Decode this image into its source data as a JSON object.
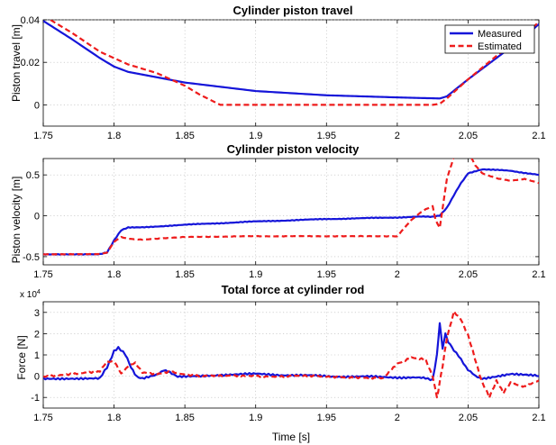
{
  "colors": {
    "measured": "#1515d9",
    "estimated": "#ee1c1c"
  },
  "chart_data": [
    {
      "type": "line",
      "title": "Cylinder piston travel",
      "xlabel": "",
      "ylabel": "Piston travel [m]",
      "xlim": [
        1.75,
        2.1
      ],
      "ylim": [
        -0.01,
        0.04
      ],
      "xticks": [
        1.75,
        1.8,
        1.85,
        1.9,
        1.95,
        2,
        2.05,
        2.1
      ],
      "xtick_labels": [
        "1.75",
        "1.8",
        "1.85",
        "1.9",
        "1.95",
        "2",
        "2.05",
        "2.1"
      ],
      "yticks": [
        0,
        0.02,
        0.04
      ],
      "ytick_labels": [
        "0",
        "0.02",
        "0.04"
      ],
      "y_multiplier": "",
      "grid": true,
      "legend": {
        "position": "top-right",
        "entries": [
          "Measured",
          "Estimated"
        ]
      },
      "series": [
        {
          "name": "Measured",
          "style": "solid",
          "x": [
            1.75,
            1.77,
            1.79,
            1.8,
            1.81,
            1.85,
            1.9,
            1.95,
            2.0,
            2.03,
            2.035,
            2.05,
            2.07,
            2.09,
            2.1
          ],
          "y": [
            0.0395,
            0.031,
            0.022,
            0.018,
            0.0155,
            0.0105,
            0.0065,
            0.0045,
            0.0035,
            0.003,
            0.004,
            0.012,
            0.022,
            0.032,
            0.038
          ]
        },
        {
          "name": "Estimated",
          "style": "dashed",
          "x": [
            1.75,
            1.77,
            1.79,
            1.81,
            1.83,
            1.85,
            1.86,
            1.875,
            1.9,
            2.0,
            2.025,
            2.03,
            2.035,
            2.05,
            2.07,
            2.09,
            2.1
          ],
          "y": [
            0.042,
            0.034,
            0.025,
            0.019,
            0.015,
            0.009,
            0.005,
            0.0,
            0.0,
            0.0,
            0.0,
            0.0005,
            0.003,
            0.012,
            0.023,
            0.033,
            0.039
          ]
        }
      ]
    },
    {
      "type": "line",
      "title": "Cylinder piston velocity",
      "xlabel": "",
      "ylabel": "Piston velocity [m]",
      "xlim": [
        1.75,
        2.1
      ],
      "ylim": [
        -0.6,
        0.7
      ],
      "xticks": [
        1.75,
        1.8,
        1.85,
        1.9,
        1.95,
        2,
        2.05,
        2.1
      ],
      "xtick_labels": [
        "1.75",
        "1.8",
        "1.85",
        "1.9",
        "1.95",
        "2",
        "2.05",
        "2.1"
      ],
      "yticks": [
        -0.5,
        0,
        0.5
      ],
      "ytick_labels": [
        "-0.5",
        "0",
        "0.5"
      ],
      "y_multiplier": "",
      "grid": true,
      "series": [
        {
          "name": "Measured",
          "style": "solid",
          "x": [
            1.75,
            1.79,
            1.795,
            1.8,
            1.805,
            1.81,
            1.82,
            1.85,
            1.9,
            1.95,
            2.0,
            2.02,
            2.025,
            2.03,
            2.035,
            2.04,
            2.045,
            2.05,
            2.06,
            2.08,
            2.1
          ],
          "y": [
            -0.47,
            -0.47,
            -0.45,
            -0.3,
            -0.18,
            -0.14,
            -0.14,
            -0.11,
            -0.07,
            -0.04,
            -0.02,
            -0.01,
            -0.01,
            0.0,
            0.1,
            0.25,
            0.4,
            0.52,
            0.57,
            0.55,
            0.5
          ],
          "wiggle": 0.006
        },
        {
          "name": "Estimated",
          "style": "dashed",
          "x": [
            1.75,
            1.79,
            1.795,
            1.8,
            1.805,
            1.81,
            1.82,
            1.85,
            1.9,
            1.95,
            2.0,
            2.005,
            2.01,
            2.015,
            2.02,
            2.025,
            2.027,
            2.03,
            2.035,
            2.04,
            2.045,
            2.05,
            2.055,
            2.06,
            2.07,
            2.08,
            2.09,
            2.1
          ],
          "y": [
            -0.47,
            -0.47,
            -0.45,
            -0.32,
            -0.26,
            -0.28,
            -0.29,
            -0.26,
            -0.25,
            -0.25,
            -0.25,
            -0.15,
            -0.05,
            0.02,
            0.08,
            0.12,
            -0.05,
            -0.15,
            0.45,
            0.72,
            0.8,
            0.78,
            0.62,
            0.52,
            0.46,
            0.43,
            0.45,
            0.4
          ],
          "wiggle": 0.004
        }
      ]
    },
    {
      "type": "line",
      "title": "Total force at cylinder rod",
      "xlabel": "Time [s]",
      "ylabel": "Force [N]",
      "xlim": [
        1.75,
        2.1
      ],
      "ylim": [
        -1.5,
        3.5
      ],
      "xticks": [
        1.75,
        1.8,
        1.85,
        1.9,
        1.95,
        2,
        2.05,
        2.1
      ],
      "xtick_labels": [
        "1.75",
        "1.8",
        "1.85",
        "1.9",
        "1.95",
        "2",
        "2.05",
        "2.1"
      ],
      "yticks": [
        -1,
        0,
        1,
        2,
        3
      ],
      "ytick_labels": [
        "-1",
        "0",
        "1",
        "2",
        "3"
      ],
      "y_multiplier": "x 10^4",
      "grid": true,
      "series": [
        {
          "name": "Measured",
          "style": "solid",
          "x": [
            1.75,
            1.79,
            1.795,
            1.8,
            1.803,
            1.808,
            1.812,
            1.816,
            1.82,
            1.83,
            1.835,
            1.838,
            1.845,
            1.87,
            1.9,
            1.95,
            2.0,
            2.02,
            2.025,
            2.028,
            2.03,
            2.032,
            2.034,
            2.036,
            2.04,
            2.045,
            2.05,
            2.055,
            2.06,
            2.07,
            2.08,
            2.09,
            2.1
          ],
          "y": [
            -0.1,
            -0.1,
            0.4,
            1.2,
            1.35,
            1.0,
            0.4,
            0.0,
            -0.1,
            0.05,
            0.3,
            0.25,
            0.0,
            0.05,
            0.1,
            0.0,
            -0.05,
            -0.1,
            -0.15,
            1.0,
            2.5,
            1.3,
            2.0,
            1.6,
            1.2,
            0.8,
            0.3,
            0.0,
            -0.1,
            0.0,
            0.1,
            0.05,
            0.0
          ],
          "wiggle": 0.06
        },
        {
          "name": "Estimated",
          "style": "dashed",
          "x": [
            1.75,
            1.79,
            1.795,
            1.8,
            1.805,
            1.81,
            1.815,
            1.82,
            1.83,
            1.84,
            1.86,
            1.9,
            1.95,
            1.99,
            2.0,
            2.01,
            2.02,
            2.025,
            2.028,
            2.03,
            2.032,
            2.035,
            2.04,
            2.045,
            2.05,
            2.055,
            2.06,
            2.065,
            2.07,
            2.075,
            2.08,
            2.09,
            2.1
          ],
          "y": [
            0.0,
            0.2,
            0.7,
            0.7,
            0.1,
            0.5,
            0.6,
            0.2,
            0.1,
            0.2,
            0.0,
            0.0,
            0.0,
            -0.1,
            0.6,
            0.9,
            0.8,
            0.0,
            -1.0,
            -0.3,
            0.5,
            1.8,
            3.0,
            2.7,
            1.9,
            0.8,
            -0.3,
            -1.0,
            -0.2,
            -0.8,
            -0.3,
            -0.5,
            -0.2
          ],
          "wiggle": 0.06
        }
      ]
    }
  ]
}
